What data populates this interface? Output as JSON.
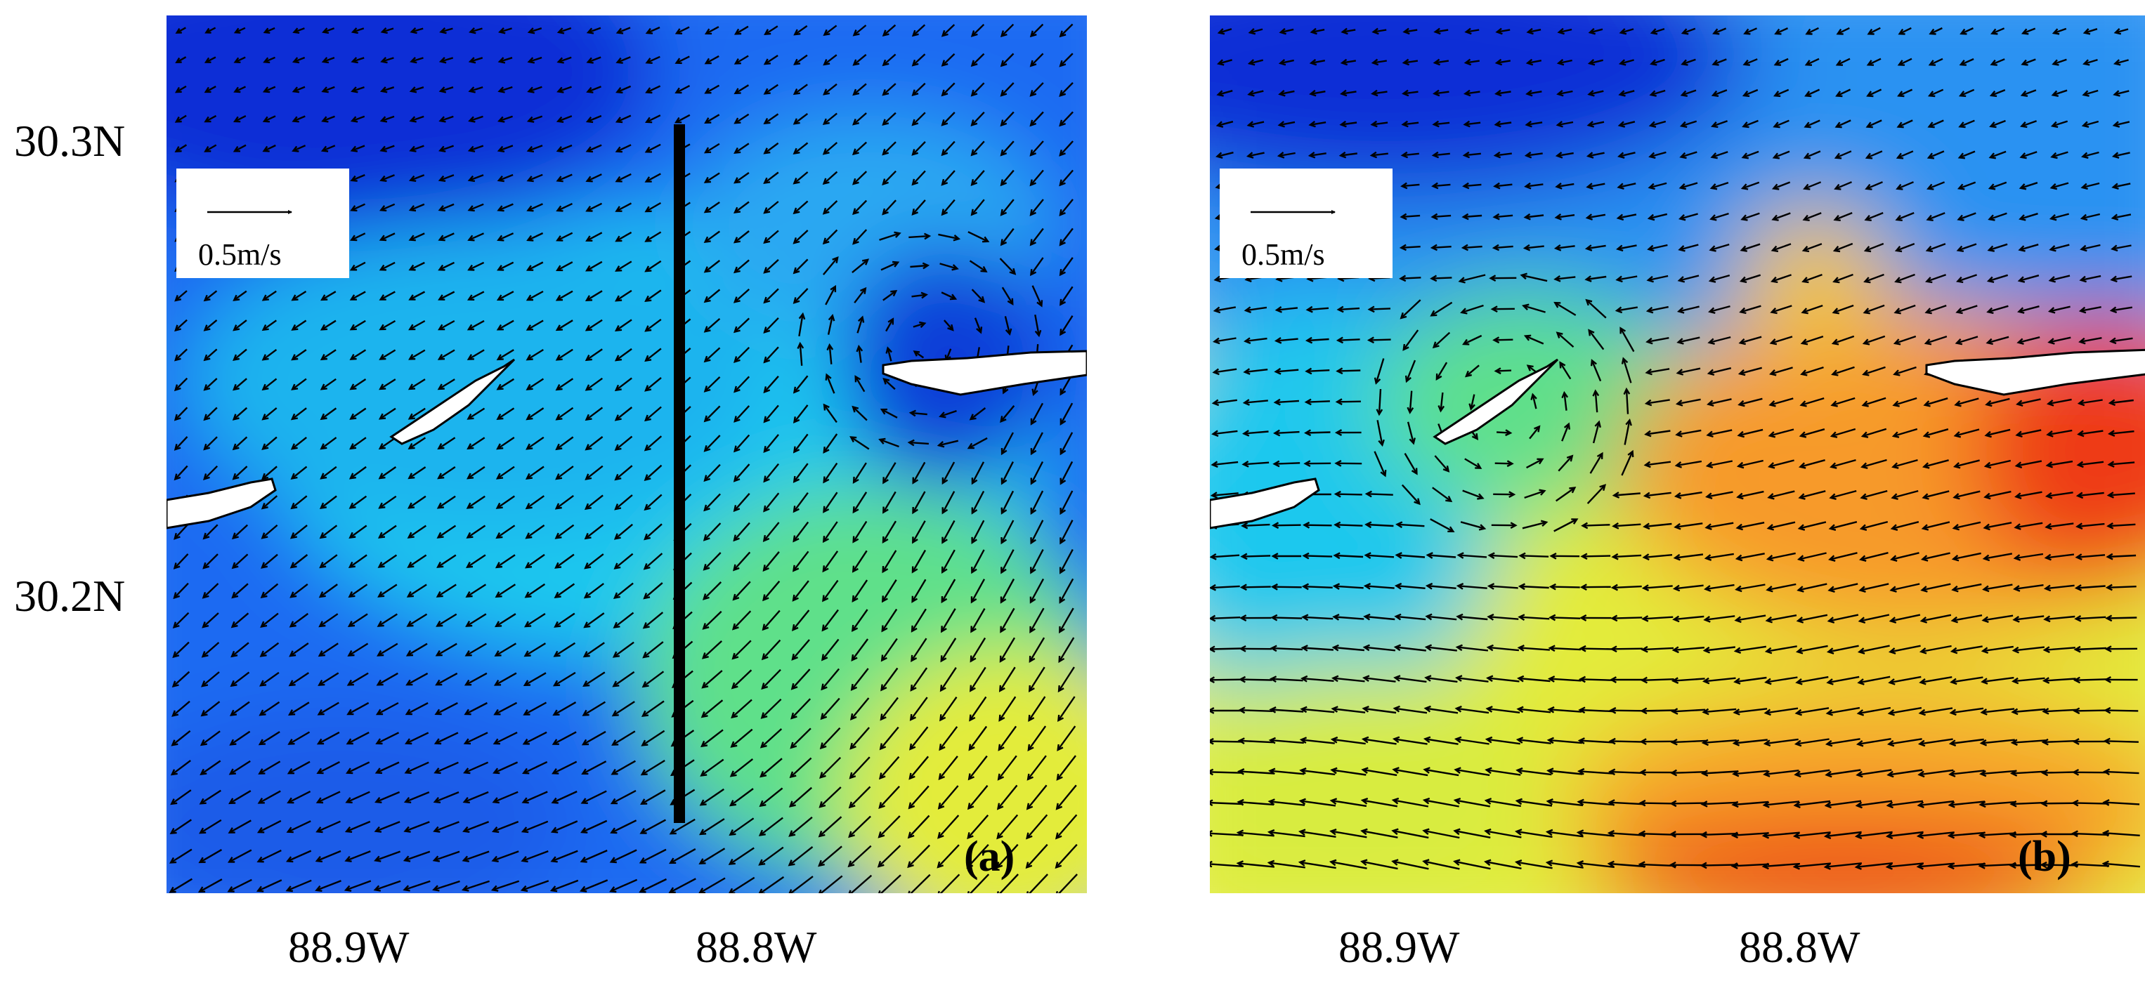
{
  "figure": {
    "y_ticks": [
      "30.3N",
      "30.2N"
    ],
    "x_ticks": [
      "88.9W",
      "88.8W"
    ],
    "panels": [
      {
        "tag": "(a)",
        "scale_label": "0.5m/s",
        "has_transect": true,
        "colormap_description": "mostly blue/cyan with green-yellow in southeast"
      },
      {
        "tag": "(b)",
        "scale_label": "0.5m/s",
        "has_transect": false,
        "colormap_description": "blue in north, yellow/orange/red in south and east"
      }
    ]
  },
  "colors": {
    "deep_blue": "#0a2fd6",
    "blue": "#1f6bf2",
    "cyan": "#1fc8ee",
    "green": "#5fe08a",
    "yellow": "#e3ec3a",
    "orange": "#f79a2a",
    "red": "#ee3a14",
    "land": "#ffffff",
    "transect": "#000000"
  }
}
